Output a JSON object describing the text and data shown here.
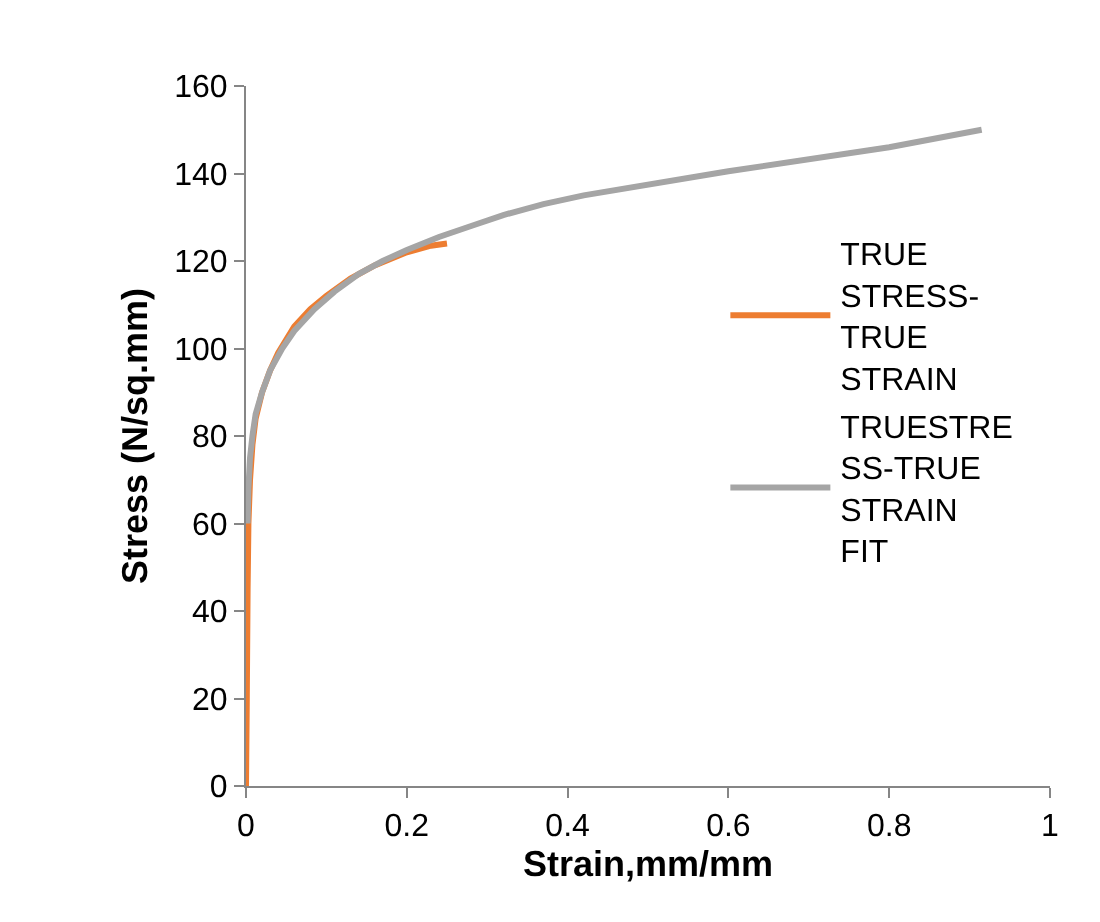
{
  "chart_data": {
    "type": "line",
    "xlabel": "Strain,mm/mm",
    "ylabel": "Stress (N/sq.mm)",
    "series": [
      {
        "name": "TRUE STRESS-TRUE STRAIN",
        "color": "#ed7d31",
        "x": [
          0,
          0.001,
          0.002,
          0.003,
          0.005,
          0.008,
          0.012,
          0.02,
          0.03,
          0.04,
          0.06,
          0.08,
          0.1,
          0.13,
          0.16,
          0.2,
          0.23,
          0.25
        ],
        "values": [
          0,
          20,
          45,
          60,
          70,
          78,
          84,
          90,
          95,
          99,
          105,
          109,
          112,
          116,
          119,
          122,
          123.5,
          124
        ]
      },
      {
        "name": "TRUESTRESS-TRUE STRAIN FIT",
        "color": "#a5a5a5",
        "x": [
          0.002,
          0.003,
          0.005,
          0.008,
          0.012,
          0.02,
          0.03,
          0.045,
          0.06,
          0.085,
          0.11,
          0.14,
          0.17,
          0.2,
          0.24,
          0.28,
          0.32,
          0.37,
          0.42,
          0.6,
          0.8,
          0.915
        ],
        "values": [
          60,
          68,
          75,
          80,
          85,
          90,
          95,
          100,
          104,
          109,
          113,
          117,
          120,
          122.5,
          125.5,
          128,
          130.5,
          133,
          135,
          140.5,
          146,
          150
        ]
      }
    ],
    "xlim": [
      0,
      1
    ],
    "xticks": [
      0,
      0.2,
      0.4,
      0.6,
      0.8,
      1
    ],
    "ylim": [
      0,
      160
    ],
    "yticks": [
      0,
      20,
      40,
      60,
      80,
      100,
      120,
      140,
      160
    ],
    "legend": "right",
    "marker": "none",
    "line_style": "solid"
  }
}
